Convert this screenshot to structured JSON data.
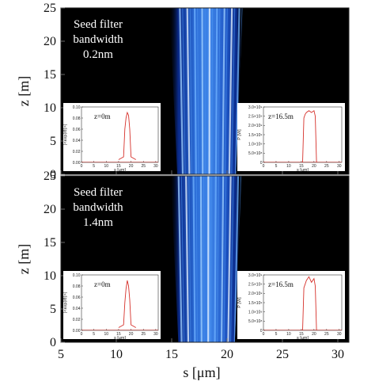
{
  "chart_data": [
    {
      "type": "heatmap",
      "title": "",
      "annotation": [
        "Seed filter",
        "bandwidth",
        "0.2nm"
      ],
      "xlim": [
        5,
        31
      ],
      "ylim": [
        0,
        25
      ],
      "xticks": [
        5,
        10,
        15,
        20,
        25,
        30
      ],
      "yticks": [
        0,
        5,
        10,
        15,
        20,
        25
      ],
      "xlabel": "",
      "ylabel": "z [m]",
      "colormap": "black-blue-white",
      "beam": {
        "z": [
          0,
          25
        ],
        "s_left": [
          15.5,
          14.8
        ],
        "s_right": [
          20.8,
          21.4
        ]
      },
      "streak_positions_s": [
        16.0,
        16.6,
        17.2,
        17.8,
        18.4,
        19.0,
        19.6,
        20.2,
        20.8
      ],
      "insets": [
        {
          "label": "z=0m",
          "ylabel": "|<exp(iθ)>|",
          "x": [
            15,
            17,
            17.5,
            18,
            18.5,
            19,
            19.5,
            20,
            22
          ],
          "y": [
            0.005,
            0.01,
            0.06,
            0.08,
            0.09,
            0.085,
            0.06,
            0.01,
            0.005
          ],
          "xlim": [
            0,
            31
          ],
          "ylim": [
            0,
            0.1
          ],
          "xticks": [
            0,
            5,
            10,
            15,
            20,
            25,
            30
          ],
          "yticks": [
            0.0,
            0.02,
            0.04,
            0.06,
            0.08,
            0.1
          ]
        },
        {
          "label": "z=16.5m",
          "ylabel": "P [W]",
          "x": [
            15.5,
            16,
            16.5,
            17,
            18,
            19,
            20,
            20.5,
            21
          ],
          "y": [
            0,
            2400000000.0,
            2600000000.0,
            2700000000.0,
            2800000000.0,
            2700000000.0,
            2800000000.0,
            2500000000.0,
            0
          ],
          "xlim": [
            0,
            31
          ],
          "ylim": [
            0,
            3000000000.0
          ],
          "xticks": [
            0,
            5,
            10,
            15,
            20,
            25,
            30
          ],
          "yticks": [
            "0",
            "5.0×10⁸",
            "1.0×10⁹",
            "1.5×10⁹",
            "2.0×10⁹",
            "2.5×10⁹",
            "3.0×10⁹"
          ]
        }
      ]
    },
    {
      "type": "heatmap",
      "title": "",
      "annotation": [
        "Seed filter",
        "bandwidth",
        "1.4nm"
      ],
      "xlim": [
        5,
        31
      ],
      "ylim": [
        0,
        25
      ],
      "xticks": [
        5,
        10,
        15,
        20,
        25,
        30
      ],
      "yticks": [
        0,
        5,
        10,
        15,
        20,
        25
      ],
      "xlabel": "s [μm]",
      "ylabel": "z [m]",
      "colormap": "black-blue-white",
      "beam": {
        "z": [
          0,
          25
        ],
        "s_left": [
          15.6,
          14.9
        ],
        "s_right": [
          20.7,
          21.3
        ]
      },
      "streak_positions_s": [
        15.9,
        16.5,
        17.1,
        17.7,
        18.3,
        18.9,
        19.5,
        20.1,
        20.7
      ],
      "insets": [
        {
          "label": "z=0m",
          "ylabel": "|<exp(iθ)>|",
          "x": [
            15,
            17,
            17.5,
            18,
            18.5,
            19,
            19.5,
            20,
            22
          ],
          "y": [
            0.005,
            0.01,
            0.05,
            0.075,
            0.09,
            0.08,
            0.055,
            0.01,
            0.005
          ],
          "xlim": [
            0,
            31
          ],
          "ylim": [
            0,
            0.1
          ],
          "xticks": [
            0,
            5,
            10,
            15,
            20,
            25,
            30
          ],
          "yticks": [
            0.0,
            0.02,
            0.04,
            0.06,
            0.08,
            0.1
          ]
        },
        {
          "label": "z=16.5m",
          "ylabel": "P [W]",
          "x": [
            15.5,
            16,
            16.5,
            17,
            18,
            19,
            20,
            20.5,
            21
          ],
          "y": [
            0,
            2300000000.0,
            2500000000.0,
            2700000000.0,
            2900000000.0,
            2600000000.0,
            2800000000.0,
            2400000000.0,
            0
          ],
          "xlim": [
            0,
            31
          ],
          "ylim": [
            0,
            3000000000.0
          ],
          "xticks": [
            0,
            5,
            10,
            15,
            20,
            25,
            30
          ],
          "yticks": [
            "0",
            "5.0×10⁸",
            "1.0×10⁹",
            "1.5×10⁹",
            "2.0×10⁹",
            "2.5×10⁹",
            "3.0×10⁹"
          ]
        }
      ]
    }
  ]
}
